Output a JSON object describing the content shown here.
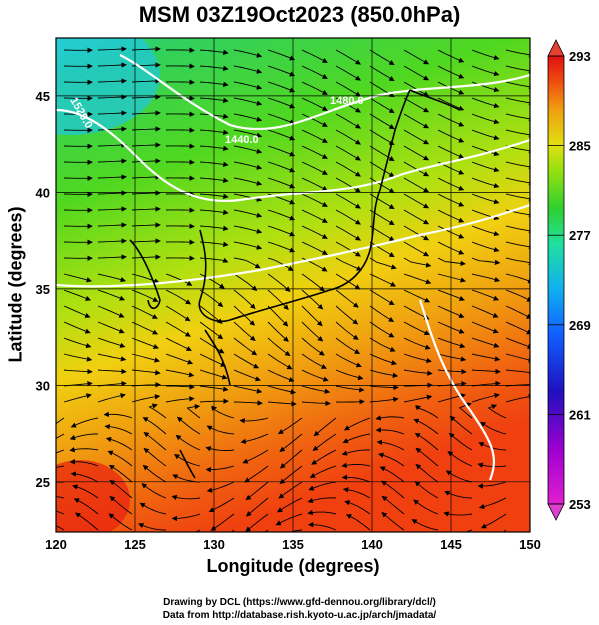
{
  "title": "MSM 03Z19Oct2023 (850.0hPa)",
  "map": {
    "xlabel": "Longitude (degrees)",
    "ylabel": "Latitude  (degrees)",
    "lon_range": [
      120,
      150
    ],
    "lat_range": [
      22.4,
      48
    ],
    "lon_ticks": [
      "120",
      "125",
      "130",
      "135",
      "140",
      "145",
      "150"
    ],
    "lat_ticks": [
      "25",
      "30",
      "35",
      "40",
      "45"
    ],
    "gridlines": true,
    "contour_labels": [
      "1480.0",
      "1440.0",
      "1520.0"
    ]
  },
  "colorbar": {
    "ticks": [
      "293",
      "285",
      "277",
      "269",
      "261",
      "253"
    ],
    "min": 253,
    "max": 293,
    "colors": [
      "#e020d0",
      "#a000d0",
      "#2010c0",
      "#1060ff",
      "#10b0f0",
      "#20e0a0",
      "#30d030",
      "#90e010",
      "#e0e010",
      "#f0a010",
      "#f05010",
      "#e01010"
    ]
  },
  "credits": {
    "line1": "Drawing by DCL (https://www.gfd-dennou.org/library/dcl/)",
    "line2": "Data from http://database.rish.kyoto-u.ac.jp/arch/jmadata/"
  }
}
